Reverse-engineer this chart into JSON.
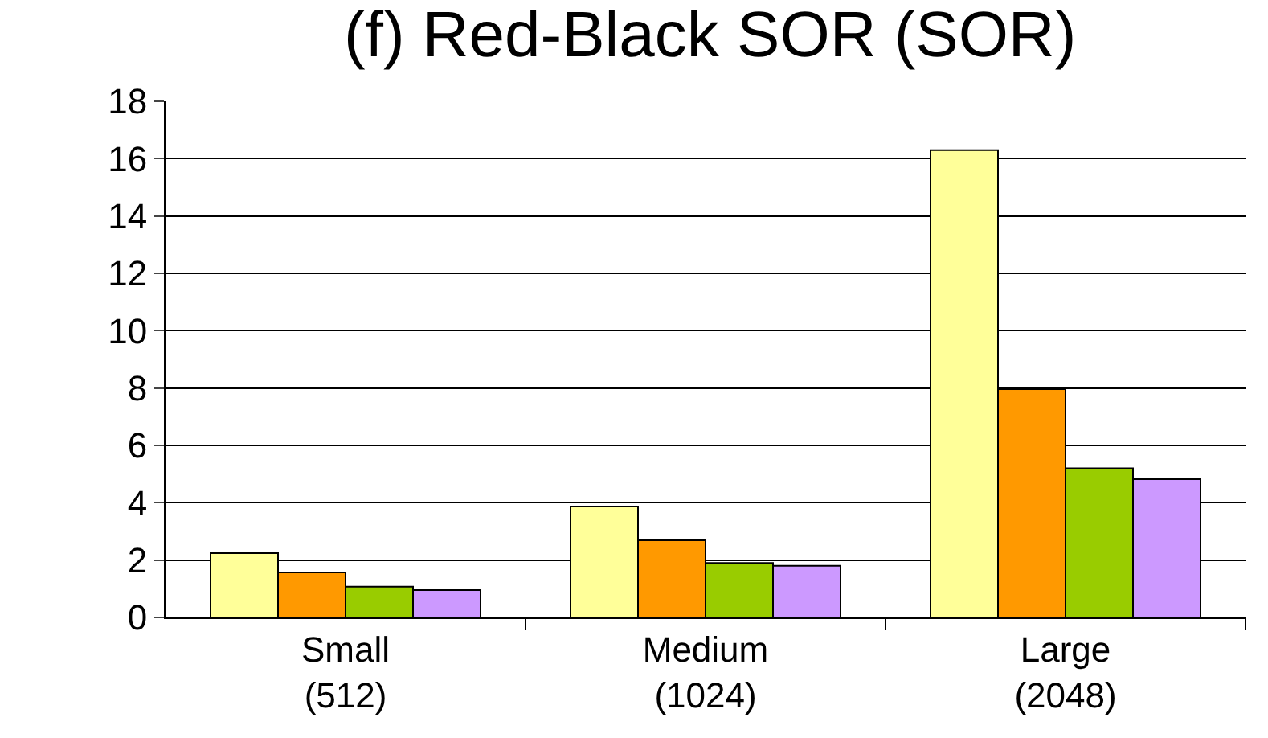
{
  "chart_data": {
    "type": "bar",
    "title": "(f) Red-Black SOR (SOR)",
    "categories": [
      "Small\n(512)",
      "Medium\n(1024)",
      "Large\n(2048)"
    ],
    "series": [
      {
        "color": "#ffff99",
        "values": [
          2.24,
          3.87,
          16.3
        ]
      },
      {
        "color": "#ff9900",
        "values": [
          1.57,
          2.69,
          7.96
        ]
      },
      {
        "color": "#99cc00",
        "values": [
          1.07,
          1.9,
          5.2
        ]
      },
      {
        "color": "#cc99ff",
        "values": [
          0.95,
          1.8,
          4.82
        ]
      }
    ],
    "ylim": [
      0,
      18
    ],
    "yticks": [
      0,
      2,
      4,
      6,
      8,
      10,
      12,
      14,
      16,
      18
    ],
    "grid": "y"
  }
}
